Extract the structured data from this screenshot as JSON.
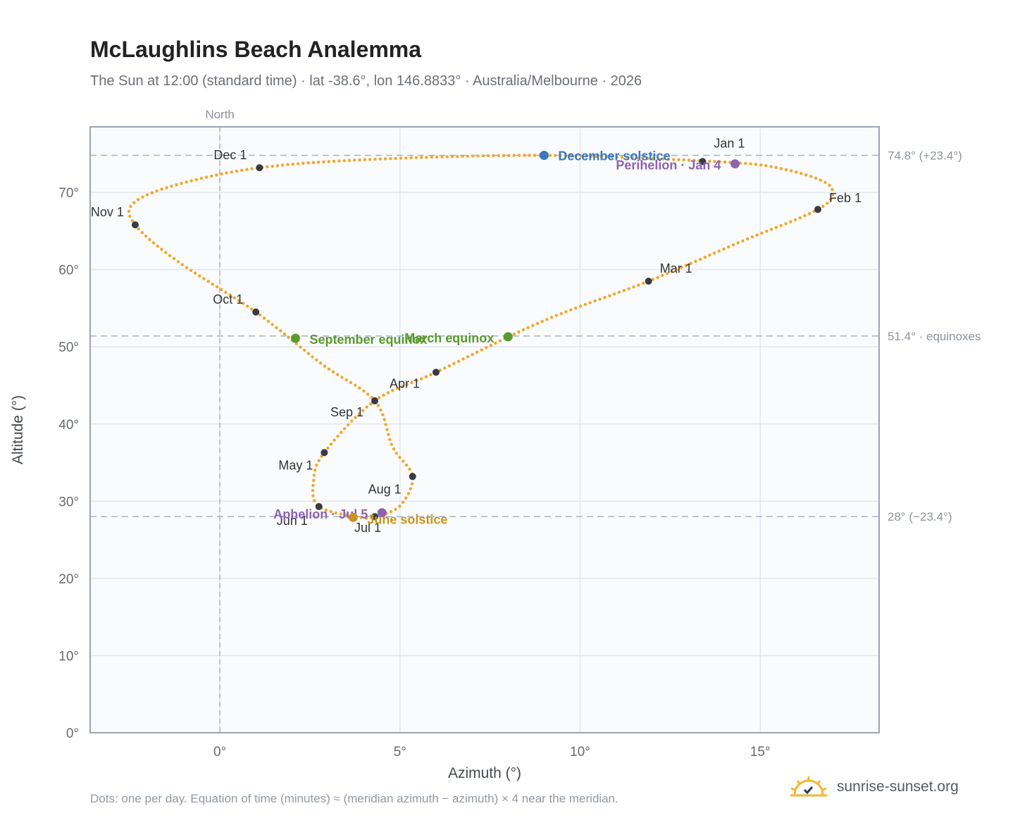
{
  "header": {
    "title": "McLaughlins Beach Analemma",
    "subtitle": "The Sun at 12:00 (standard time) · lat -38.6°, lon 146.8833° · Australia/Melbourne · 2026"
  },
  "footer": {
    "note": "Dots: one per day. Equation of time (minutes) ≈ (meridian azimuth − azimuth) × 4 near the meridian.",
    "brand": "sunrise-sunset.org"
  },
  "colors": {
    "curve": "#f2a62a",
    "month_marker": "#363b45",
    "december_solstice": "#3a78c2",
    "june_solstice": "#c9951e",
    "equinox": "#5a9a2e",
    "apsis": "#8e62b0",
    "plot_bg": "#f9fbfd",
    "grid": "#e2e7ee",
    "frame": "#9aa4b2",
    "ref_line": "#a8b4c2"
  },
  "chart_data": {
    "type": "scatter",
    "xlabel": "Azimuth (°)",
    "ylabel": "Altitude (°)",
    "xlim": [
      -3.6,
      18.3
    ],
    "ylim": [
      0,
      78.5
    ],
    "x_ticks": [
      0,
      5,
      10,
      15
    ],
    "x_tick_labels": [
      "0°",
      "5°",
      "10°",
      "15°"
    ],
    "y_ticks": [
      0,
      10,
      20,
      30,
      40,
      50,
      60,
      70
    ],
    "y_tick_labels": [
      "0°",
      "10°",
      "20°",
      "30°",
      "40°",
      "50°",
      "60°",
      "70°"
    ],
    "grid": true,
    "meridian": {
      "x": 0,
      "label": "North"
    },
    "reference_lines": [
      {
        "y": 74.8,
        "label": "74.8° (+23.4°)"
      },
      {
        "y": 51.4,
        "label": "51.4° · equinoxes"
      },
      {
        "y": 28.0,
        "label": "28° (−23.4°)"
      }
    ],
    "analemma_path": [
      [
        13.45,
        74.1
      ],
      [
        15.1,
        73.5
      ],
      [
        16.45,
        72.0
      ],
      [
        17.0,
        70.3
      ],
      [
        16.6,
        67.8
      ],
      [
        14.4,
        63.5
      ],
      [
        11.9,
        58.5
      ],
      [
        9.0,
        53.4
      ],
      [
        6.0,
        46.7
      ],
      [
        4.3,
        43.0
      ],
      [
        2.9,
        36.3
      ],
      [
        2.6,
        32.6
      ],
      [
        2.75,
        29.3
      ],
      [
        3.9,
        27.9
      ],
      [
        4.3,
        28.0
      ],
      [
        5.0,
        29.4
      ],
      [
        5.35,
        33.2
      ],
      [
        4.8,
        37.0
      ],
      [
        4.3,
        43.0
      ],
      [
        2.85,
        47.7
      ],
      [
        1.0,
        54.5
      ],
      [
        -1.15,
        61.0
      ],
      [
        -2.35,
        65.8
      ],
      [
        -2.4,
        68.6
      ],
      [
        -1.2,
        71.0
      ],
      [
        1.1,
        73.2
      ],
      [
        4.3,
        74.3
      ],
      [
        9.0,
        74.8
      ],
      [
        13.45,
        74.1
      ]
    ],
    "month_markers": [
      {
        "label": "Jan 1",
        "x": 13.4,
        "y": 74.0
      },
      {
        "label": "Feb 1",
        "x": 16.6,
        "y": 67.8
      },
      {
        "label": "Mar 1",
        "x": 11.9,
        "y": 58.5
      },
      {
        "label": "Apr 1",
        "x": 6.0,
        "y": 46.7
      },
      {
        "label": "May 1",
        "x": 2.9,
        "y": 36.3
      },
      {
        "label": "Jun 1",
        "x": 2.75,
        "y": 29.3
      },
      {
        "label": "Jul 1",
        "x": 4.3,
        "y": 28.0
      },
      {
        "label": "Aug 1",
        "x": 5.35,
        "y": 33.2
      },
      {
        "label": "Sep 1",
        "x": 4.3,
        "y": 43.0
      },
      {
        "label": "Oct 1",
        "x": 1.0,
        "y": 54.5
      },
      {
        "label": "Nov 1",
        "x": -2.35,
        "y": 65.8
      },
      {
        "label": "Dec 1",
        "x": 1.1,
        "y": 73.2
      }
    ],
    "events": [
      {
        "label": "December solstice",
        "x": 9.0,
        "y": 74.8,
        "color": "#3a78c2"
      },
      {
        "label": "Perihelion · Jan 4",
        "x": 14.3,
        "y": 73.7,
        "color": "#8e62b0"
      },
      {
        "label": "March equinox",
        "x": 8.0,
        "y": 51.3,
        "color": "#5a9a2e"
      },
      {
        "label": "September equinox",
        "x": 2.1,
        "y": 51.1,
        "color": "#5a9a2e"
      },
      {
        "label": "Aphelion · Jul 5",
        "x": 4.5,
        "y": 28.5,
        "color": "#8e62b0"
      },
      {
        "label": "June solstice",
        "x": 3.7,
        "y": 27.9,
        "color": "#c9951e"
      }
    ]
  }
}
